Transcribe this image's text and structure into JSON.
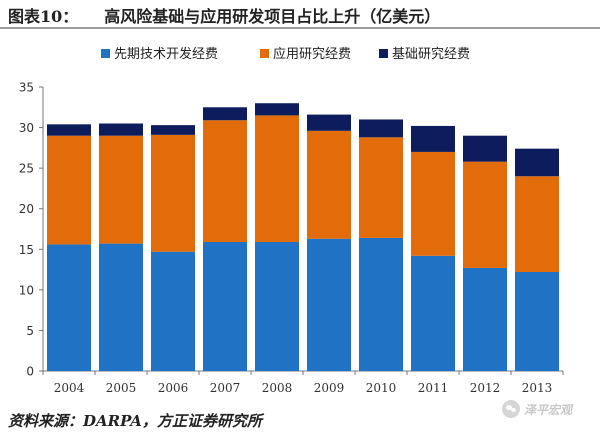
{
  "figure": {
    "label": "图表10：",
    "title": "高风险基础与应用研发项目占比上升（亿美元）",
    "source": "资料来源：DARPA，方正证券研究所",
    "watermark": "泽平宏观"
  },
  "chart_data": {
    "type": "bar",
    "stacked": true,
    "categories": [
      "2004",
      "2005",
      "2006",
      "2007",
      "2008",
      "2009",
      "2010",
      "2011",
      "2012",
      "2013"
    ],
    "series": [
      {
        "name": "先期技术开发经费",
        "color": "#1f72c4",
        "values": [
          15.6,
          15.7,
          14.7,
          15.9,
          15.9,
          16.3,
          16.4,
          14.2,
          12.7,
          12.2
        ]
      },
      {
        "name": "应用研究经费",
        "color": "#e36c0a",
        "values": [
          13.4,
          13.3,
          14.4,
          15.0,
          15.6,
          13.3,
          12.4,
          12.8,
          13.1,
          11.8
        ]
      },
      {
        "name": "基础研究经费",
        "color": "#0d1c5c",
        "values": [
          1.4,
          1.5,
          1.2,
          1.6,
          1.5,
          2.0,
          2.2,
          3.2,
          3.2,
          3.4
        ]
      }
    ],
    "y_ticks": [
      "0",
      "5",
      "10",
      "15",
      "20",
      "25",
      "30",
      "35"
    ],
    "ylim": [
      0,
      35
    ],
    "legend_position": "top",
    "grid": false
  }
}
